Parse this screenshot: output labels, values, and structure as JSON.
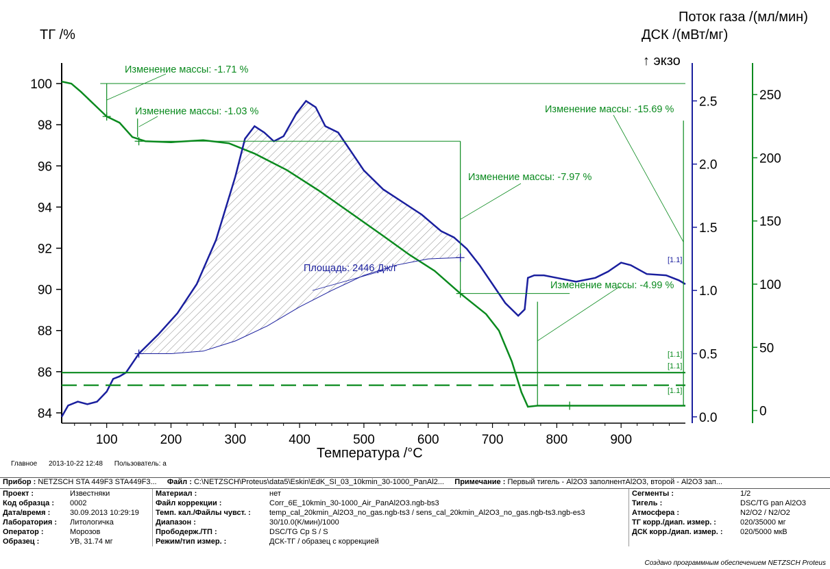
{
  "titles": {
    "left_axis": "ТГ /%",
    "right_top": "Поток газа /(мл/мин)",
    "right_dsc": "ДСК /(мВт/мг)",
    "exo": "↑ экзо",
    "x_axis": "Температура /°C"
  },
  "footer": {
    "main": "Главное",
    "datetime": "2013-10-22 12:48",
    "user": "Пользователь: a"
  },
  "meta": {
    "header": {
      "device_label": "Прибор :",
      "device": "NETZSCH STA 449F3 STA449F3...",
      "file_label": "Файл :",
      "file": "C:\\NETZSCH\\Proteus\\data5\\Eskin\\EdK_SI_03_10kmin_30-1000_PanAl2...",
      "note_label": "Примечание :",
      "note": "Первый тигель - Al2O3 заполнентAl2O3, второй -  Al2O3 зап..."
    },
    "col1": [
      {
        "label": "Проект :",
        "value": "Известняки"
      },
      {
        "label": "Код образца :",
        "value": "0002"
      },
      {
        "label": "Дата/время :",
        "value": "30.09.2013 10:29:19"
      },
      {
        "label": "Лаборатория :",
        "value": "Литологичка"
      },
      {
        "label": "Оператор :",
        "value": "Морозов"
      },
      {
        "label": "Образец :",
        "value": "УВ, 31.74 мг"
      }
    ],
    "col2": [
      {
        "label": "Материал :",
        "value": "нет"
      },
      {
        "label": "Файл коррекции :",
        "value": "Corr_6E_10kmin_30-1000_Air_PanAl2O3.ngb-bs3"
      },
      {
        "label": "Темп. кал./Файлы чувст. :",
        "value": "temp_cal_20kmin_Al2O3_no_gas.ngb-ts3 / sens_cal_20kmin_Al2O3_no_gas.ngb-ts3.ngb-es3"
      },
      {
        "label": "Диапазон :",
        "value": "30/10.0(K/мин)/1000"
      },
      {
        "label": "Прободерж./ТП :",
        "value": "DSC/TG Cp S / S"
      },
      {
        "label": "Режим/тип измер. :",
        "value": "ДСК-ТГ / образец с коррекцией"
      }
    ],
    "col3": [
      {
        "label": "Сегменты :",
        "value": "1/2"
      },
      {
        "label": "Тигель :",
        "value": "DSC/TG pan Al2O3"
      },
      {
        "label": "Атмосфера :",
        "value": "N2/O2 / N2/O2"
      },
      {
        "label": "ТГ корр./диап. измер. :",
        "value": "020/35000 мг"
      },
      {
        "label": "ДСК корр./диап. измер. :",
        "value": "020/5000 мкВ"
      },
      {
        "label": "",
        "value": ""
      }
    ],
    "credit": "Создано программным обеспечением NETZSCH Proteus"
  },
  "colors": {
    "tg": "#0a8a1e",
    "dsc": "#1a1f9e",
    "axis": "#000000",
    "hatch": "#8a8a8a"
  },
  "chart_data": {
    "type": "line",
    "x_axis": {
      "label": "Температура /°C",
      "range": [
        30,
        1000
      ],
      "ticks": [
        100,
        200,
        300,
        400,
        500,
        600,
        700,
        800,
        900
      ]
    },
    "y_left": {
      "label": "ТГ /%",
      "range": [
        83.5,
        101
      ],
      "ticks": [
        84,
        86,
        88,
        90,
        92,
        94,
        96,
        98,
        100
      ]
    },
    "y_dsc": {
      "label": "ДСК /(мВт/мг)",
      "range": [
        -0.05,
        2.8
      ],
      "ticks": [
        0.0,
        0.5,
        1.0,
        1.5,
        2.0,
        2.5
      ],
      "tick_labels": [
        "0.0",
        "0.5",
        "1.0",
        "1.5",
        "2.0",
        "2.5"
      ]
    },
    "y_gas": {
      "label": "Поток газа /(мл/мин)",
      "range": [
        -10,
        275
      ],
      "ticks": [
        0,
        50,
        100,
        150,
        200,
        250
      ]
    },
    "series": [
      {
        "name": "ТГ",
        "axis": "left",
        "color": "#0a8a1e",
        "points": [
          [
            30,
            100.1
          ],
          [
            45,
            100.0
          ],
          [
            60,
            99.6
          ],
          [
            80,
            99.0
          ],
          [
            100,
            98.4
          ],
          [
            120,
            98.1
          ],
          [
            140,
            97.4
          ],
          [
            160,
            97.2
          ],
          [
            200,
            97.15
          ],
          [
            250,
            97.25
          ],
          [
            290,
            97.1
          ],
          [
            330,
            96.6
          ],
          [
            380,
            95.8
          ],
          [
            430,
            94.8
          ],
          [
            480,
            93.7
          ],
          [
            530,
            92.6
          ],
          [
            570,
            91.7
          ],
          [
            610,
            90.9
          ],
          [
            650,
            89.8
          ],
          [
            690,
            88.8
          ],
          [
            710,
            88.0
          ],
          [
            730,
            86.5
          ],
          [
            745,
            85.0
          ],
          [
            755,
            84.3
          ],
          [
            770,
            84.35
          ],
          [
            1000,
            84.35
          ]
        ]
      },
      {
        "name": "ДСК",
        "axis": "dsc",
        "color": "#1a1f9e",
        "points": [
          [
            30,
            0.0
          ],
          [
            40,
            0.09
          ],
          [
            55,
            0.12
          ],
          [
            70,
            0.1
          ],
          [
            85,
            0.12
          ],
          [
            100,
            0.2
          ],
          [
            110,
            0.3
          ],
          [
            120,
            0.32
          ],
          [
            130,
            0.35
          ],
          [
            150,
            0.5
          ],
          [
            180,
            0.65
          ],
          [
            210,
            0.82
          ],
          [
            240,
            1.05
          ],
          [
            270,
            1.4
          ],
          [
            300,
            1.9
          ],
          [
            315,
            2.2
          ],
          [
            330,
            2.3
          ],
          [
            345,
            2.25
          ],
          [
            360,
            2.18
          ],
          [
            375,
            2.22
          ],
          [
            395,
            2.4
          ],
          [
            410,
            2.5
          ],
          [
            425,
            2.45
          ],
          [
            440,
            2.3
          ],
          [
            460,
            2.25
          ],
          [
            480,
            2.1
          ],
          [
            500,
            1.95
          ],
          [
            530,
            1.8
          ],
          [
            560,
            1.7
          ],
          [
            590,
            1.6
          ],
          [
            620,
            1.47
          ],
          [
            640,
            1.42
          ],
          [
            660,
            1.33
          ],
          [
            680,
            1.2
          ],
          [
            700,
            1.05
          ],
          [
            720,
            0.9
          ],
          [
            740,
            0.8
          ],
          [
            750,
            0.85
          ],
          [
            755,
            1.1
          ],
          [
            765,
            1.12
          ],
          [
            780,
            1.12
          ],
          [
            800,
            1.1
          ],
          [
            830,
            1.07
          ],
          [
            860,
            1.1
          ],
          [
            880,
            1.15
          ],
          [
            900,
            1.22
          ],
          [
            915,
            1.2
          ],
          [
            940,
            1.13
          ],
          [
            970,
            1.12
          ],
          [
            990,
            1.08
          ],
          [
            1000,
            1.05
          ]
        ]
      },
      {
        "name": "Базовая линия площади",
        "axis": "dsc",
        "color": "#1a1f9e",
        "points": [
          [
            150,
            0.5
          ],
          [
            200,
            0.5
          ],
          [
            250,
            0.52
          ],
          [
            300,
            0.6
          ],
          [
            350,
            0.72
          ],
          [
            400,
            0.87
          ],
          [
            450,
            1.0
          ],
          [
            500,
            1.12
          ],
          [
            550,
            1.2
          ],
          [
            600,
            1.25
          ],
          [
            650,
            1.26
          ]
        ]
      },
      {
        "name": "Поток газа 1",
        "axis": "gas",
        "color": "#0a8a1e",
        "points": [
          [
            30,
            30
          ],
          [
            1000,
            30
          ]
        ]
      },
      {
        "name": "Поток газа 2",
        "axis": "gas",
        "color": "#0a8a1e",
        "dashed": true,
        "points": [
          [
            30,
            20
          ],
          [
            1000,
            20
          ]
        ]
      }
    ],
    "annotations": [
      {
        "text": "Изменение массы: -1.71 %"
      },
      {
        "text": "Изменение массы: -1.03 %"
      },
      {
        "text": "Изменение массы: -7.97 %"
      },
      {
        "text": "Изменение массы: -15.69 %"
      },
      {
        "text": "Изменение массы: -4.99 %"
      },
      {
        "text": "Площадь: 2446 Дж/г"
      }
    ],
    "markers": [
      "[1.1]",
      "[1.1]",
      "[1.1]",
      "[1.1]"
    ]
  }
}
